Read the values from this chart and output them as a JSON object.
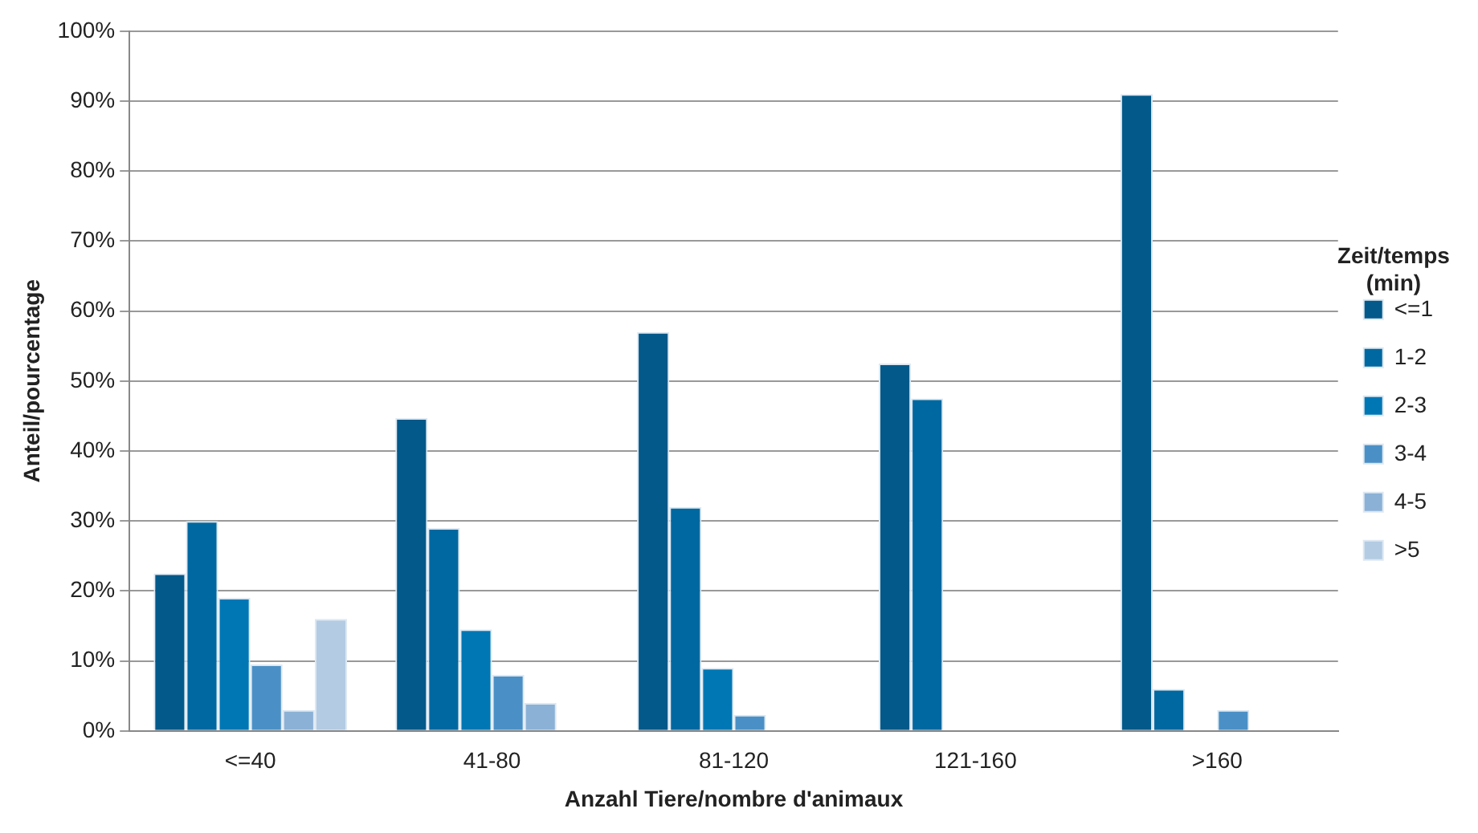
{
  "chart_data": {
    "type": "bar",
    "xlabel": "Anzahl Tiere/nombre d'animaux",
    "ylabel": "Anteil/pourcentage",
    "legend_title": "Zeit/temps (min)",
    "legend": "right",
    "grid": "y",
    "categories": [
      "<=40",
      "41-80",
      "81-120",
      "121-160",
      ">160"
    ],
    "ylim": [
      0,
      100
    ],
    "yticks": [
      {
        "value": 0,
        "label": "0%"
      },
      {
        "value": 10,
        "label": "10%"
      },
      {
        "value": 20,
        "label": "20%"
      },
      {
        "value": 30,
        "label": "30%"
      },
      {
        "value": 40,
        "label": "40%"
      },
      {
        "value": 50,
        "label": "50%"
      },
      {
        "value": 60,
        "label": "60%"
      },
      {
        "value": 70,
        "label": "70%"
      },
      {
        "value": 80,
        "label": "80%"
      },
      {
        "value": 90,
        "label": "90%"
      },
      {
        "value": 100,
        "label": "100%"
      }
    ],
    "series": [
      {
        "name": "<=1",
        "color": "#02598a",
        "values": [
          22.5,
          44.7,
          57,
          52.5,
          91
        ]
      },
      {
        "name": "1-2",
        "color": "#0068a0",
        "values": [
          30,
          29,
          32,
          47.5,
          6
        ]
      },
      {
        "name": "2-3",
        "color": "#0077b5",
        "values": [
          19,
          14.5,
          9,
          null,
          null
        ]
      },
      {
        "name": "3-4",
        "color": "#4a90c6",
        "values": [
          9.5,
          8,
          2.3,
          null,
          3
        ]
      },
      {
        "name": "4-5",
        "color": "#8bb1d6",
        "values": [
          3,
          4,
          null,
          null,
          null
        ]
      },
      {
        "name": ">5",
        "color": "#b3cbe3",
        "values": [
          16,
          null,
          null,
          null,
          null
        ]
      }
    ]
  }
}
